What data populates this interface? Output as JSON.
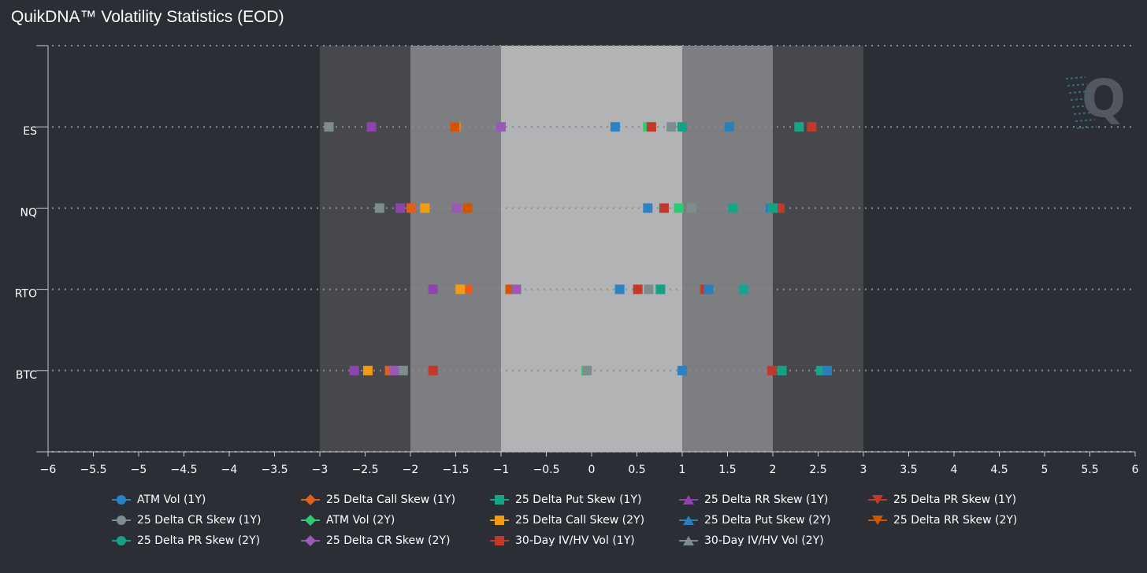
{
  "title": "QuikDNA™ Volatility Statistics (EOD)",
  "colors": {
    "background": "#2b2e35",
    "band_outer": "#46484c",
    "band_mid": "#7d7e82",
    "band_inner": "#b2b3b5"
  },
  "chart_data": {
    "type": "scatter",
    "title": "QuikDNA™ Volatility Statistics (EOD)",
    "xlim": [
      -6,
      6
    ],
    "x_tick_labels": [
      "−6",
      "−5.5",
      "−5",
      "−4.5",
      "−4",
      "−3.5",
      "−3",
      "−2.5",
      "−2",
      "−1.5",
      "−1",
      "−0.5",
      "0",
      "0.5",
      "1",
      "1.5",
      "2",
      "2.5",
      "3",
      "3.5",
      "4",
      "4.5",
      "5",
      "5.5",
      "6"
    ],
    "categories": [
      "ES",
      "NQ",
      "RTO",
      "BTC"
    ],
    "bands": [
      {
        "from": -3,
        "to": 3,
        "level": "outer"
      },
      {
        "from": -2,
        "to": 2,
        "level": "mid"
      },
      {
        "from": -1,
        "to": 1,
        "level": "inner"
      }
    ],
    "series": [
      {
        "name": "ATM Vol (1Y)",
        "color": "#2b82c4",
        "symbol": "circle",
        "values": [
          0.26,
          0.62,
          0.31,
          1.0
        ]
      },
      {
        "name": "25 Delta Call Skew (1Y)",
        "color": "#e0601a",
        "symbol": "diamond",
        "values": [
          -1.5,
          -1.99,
          -1.37,
          -2.23
        ]
      },
      {
        "name": "25 Delta Put Skew (1Y)",
        "color": "#17a58a",
        "symbol": "square",
        "values": [
          2.29,
          1.56,
          1.68,
          2.53
        ]
      },
      {
        "name": "25 Delta RR Skew (1Y)",
        "color": "#8e44ad",
        "symbol": "triangle",
        "values": [
          -2.43,
          -2.11,
          -1.75,
          -2.62
        ]
      },
      {
        "name": "25 Delta PR Skew (1Y)",
        "color": "#c0392b",
        "symbol": "triangle-down",
        "values": [
          2.43,
          2.08,
          1.25,
          1.99
        ]
      },
      {
        "name": "25 Delta CR Skew (1Y)",
        "color": "#7f8c8d",
        "symbol": "circle",
        "values": [
          -2.9,
          -2.34,
          0.63,
          -2.08
        ]
      },
      {
        "name": "ATM Vol (2Y)",
        "color": "#2ecc71",
        "symbol": "diamond",
        "values": [
          0.62,
          0.96,
          0.76,
          -0.06
        ]
      },
      {
        "name": "25 Delta Call Skew (2Y)",
        "color": "#f39c12",
        "symbol": "square",
        "values": [
          -1.5,
          -1.84,
          -1.45,
          -2.47
        ]
      },
      {
        "name": "25 Delta Put Skew (2Y)",
        "color": "#2980b9",
        "symbol": "triangle",
        "values": [
          1.52,
          1.97,
          1.29,
          2.6
        ]
      },
      {
        "name": "25 Delta RR Skew (2Y)",
        "color": "#d35400",
        "symbol": "triangle-down",
        "values": [
          -1.51,
          -1.37,
          -0.9,
          -1.75
        ]
      },
      {
        "name": "25 Delta PR Skew (2Y)",
        "color": "#16a085",
        "symbol": "circle",
        "values": [
          1.0,
          2.0,
          0.76,
          2.1
        ]
      },
      {
        "name": "25 Delta CR Skew (2Y)",
        "color": "#9b59b6",
        "symbol": "diamond",
        "values": [
          -1.0,
          -1.49,
          -0.83,
          -2.18
        ]
      },
      {
        "name": "30-Day IV/HV Vol (1Y)",
        "color": "#c0392b",
        "symbol": "square",
        "values": [
          0.66,
          0.8,
          0.51,
          -1.75
        ]
      },
      {
        "name": "30-Day IV/HV Vol (2Y)",
        "color": "#7f8c8d",
        "symbol": "triangle",
        "values": [
          0.88,
          1.1,
          0.63,
          -0.05
        ]
      }
    ],
    "legend_position": "bottom"
  }
}
